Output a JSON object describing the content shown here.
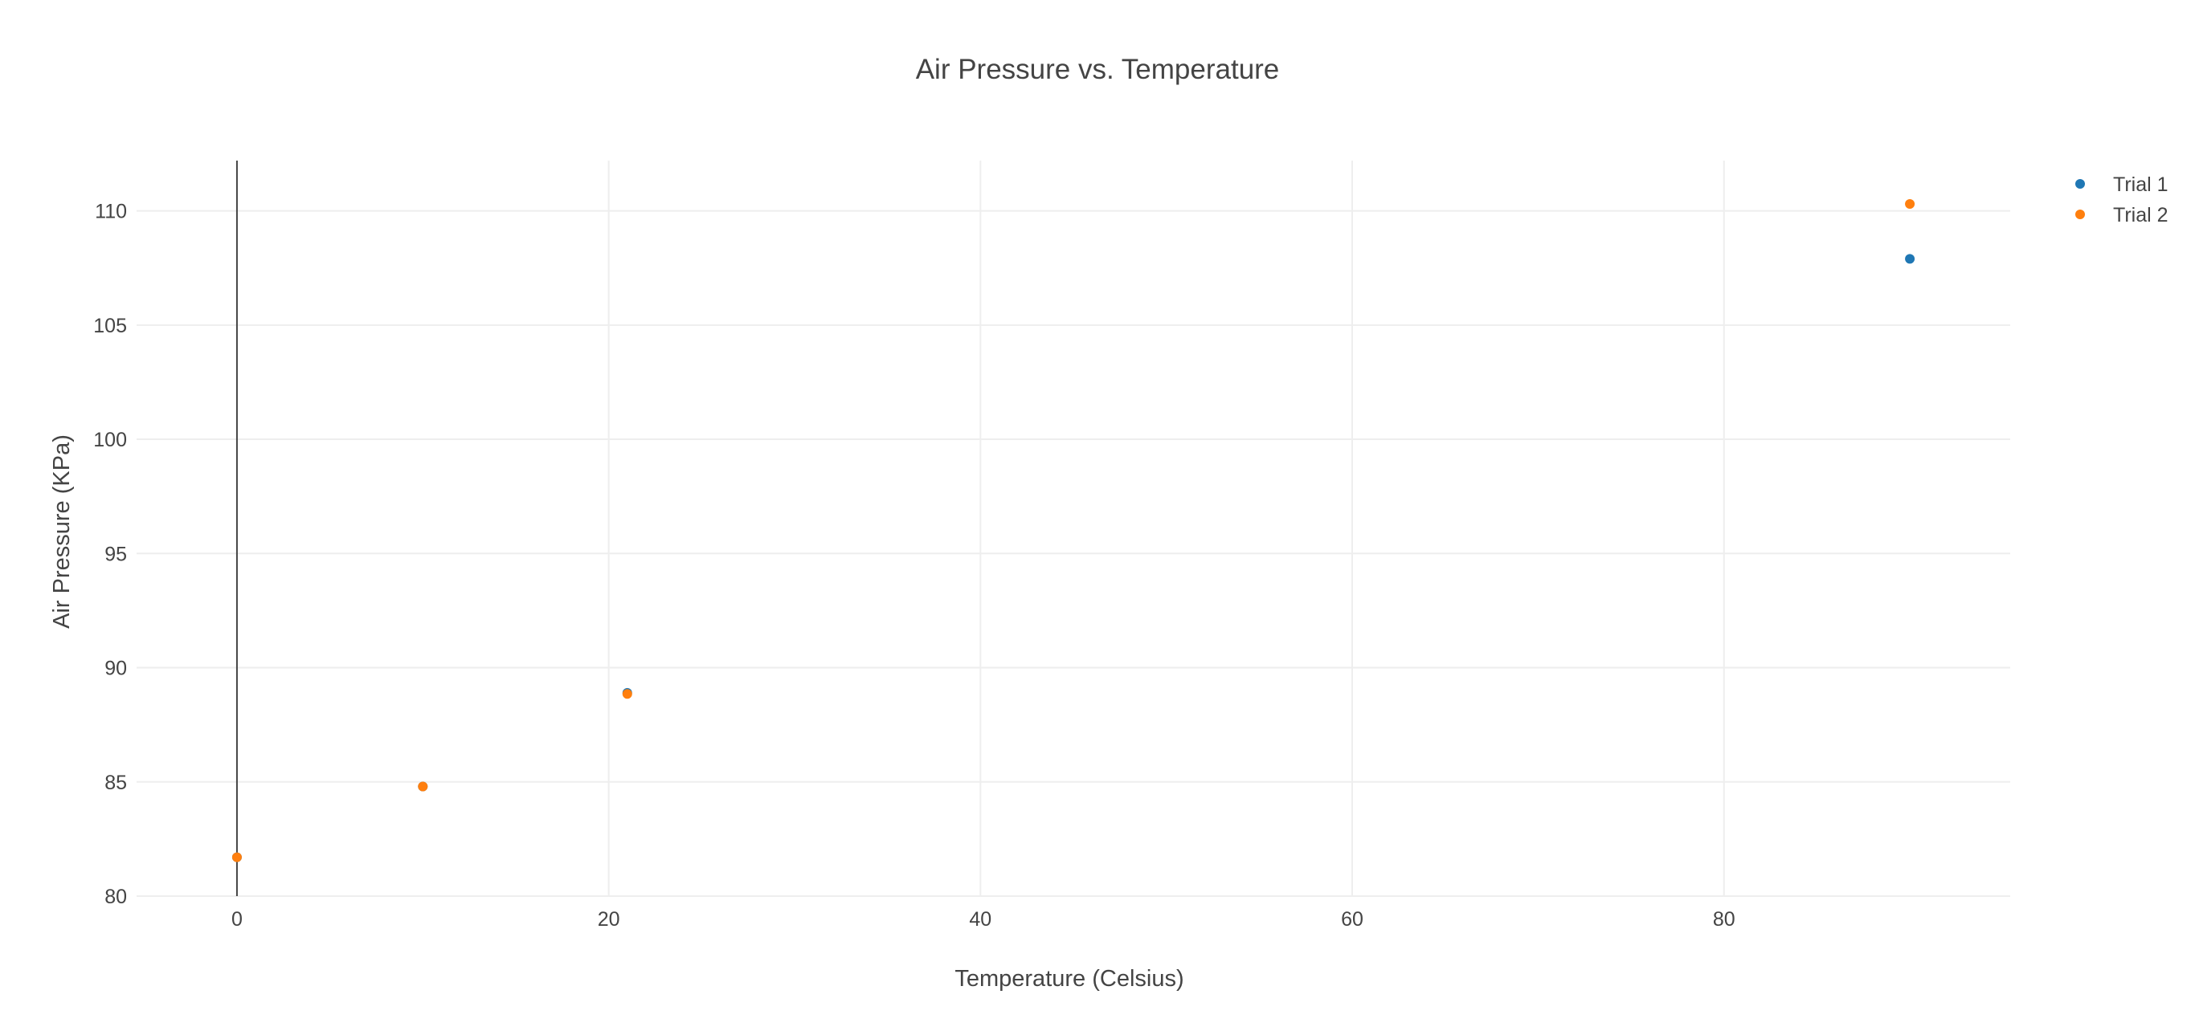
{
  "chart_data": {
    "type": "scatter",
    "title": "Air Pressure vs. Temperature",
    "xlabel": "Temperature (Celsius)",
    "ylabel": "Air Pressure (KPa)",
    "xlim": [
      -5.4,
      95.4
    ],
    "ylim": [
      80,
      112.2
    ],
    "xticks": [
      0,
      20,
      40,
      60,
      80
    ],
    "yticks": [
      80,
      85,
      90,
      95,
      100,
      105,
      110
    ],
    "grid": true,
    "legend_position": "top-right",
    "series": [
      {
        "name": "Trial 1",
        "color": "#1f77b4",
        "x": [
          0,
          10,
          21,
          90
        ],
        "y": [
          81.7,
          84.8,
          88.9,
          107.9
        ]
      },
      {
        "name": "Trial 2",
        "color": "#ff7f0e",
        "x": [
          0,
          10,
          21,
          90
        ],
        "y": [
          81.7,
          84.8,
          88.85,
          110.3
        ]
      }
    ]
  }
}
